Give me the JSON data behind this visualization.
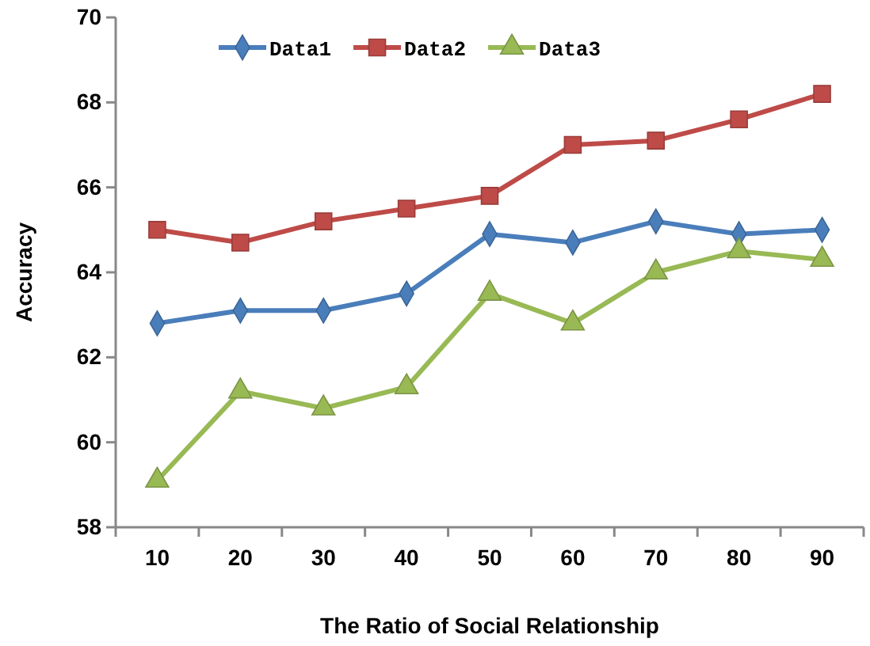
{
  "chart_data": {
    "type": "line",
    "xlabel": "The Ratio of Social Relationship",
    "ylabel": "Accuracy",
    "categories": [
      "10",
      "20",
      "30",
      "40",
      "50",
      "60",
      "70",
      "80",
      "90"
    ],
    "series": [
      {
        "name": "Data1",
        "color": "#4a7ebb",
        "marker": "diamond",
        "values": [
          62.8,
          63.1,
          63.1,
          63.5,
          64.9,
          64.7,
          65.2,
          64.9,
          65.0
        ]
      },
      {
        "name": "Data2",
        "color": "#be4b48",
        "marker": "square",
        "values": [
          65.0,
          64.7,
          65.2,
          65.5,
          65.8,
          67.0,
          67.1,
          67.6,
          68.2
        ]
      },
      {
        "name": "Data3",
        "color": "#98b954",
        "marker": "triangle",
        "values": [
          59.1,
          61.2,
          60.8,
          61.3,
          63.5,
          62.8,
          64.0,
          64.5,
          64.3
        ]
      }
    ],
    "ylim": [
      58,
      70
    ],
    "yticks": [
      58,
      60,
      62,
      64,
      66,
      68,
      70
    ],
    "grid": false,
    "legend": "top",
    "line_style": "solid"
  }
}
